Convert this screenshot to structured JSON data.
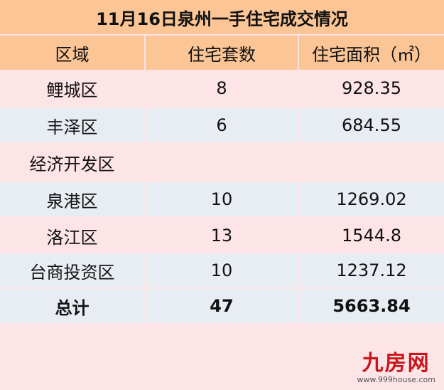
{
  "title": "11月16日泉州一手住宅成交情况",
  "headers": [
    "区域",
    "住宅套数",
    "住宅面积（㎡）"
  ],
  "rows": [
    {
      "district": "鲤城区",
      "units": "8",
      "area": "928.35"
    },
    {
      "district": "丰泽区",
      "units": "6",
      "area": "684.55"
    },
    {
      "district": "经济开发区",
      "units": "",
      "area": ""
    },
    {
      "district": "泉港区",
      "units": "10",
      "area": "1269.02"
    },
    {
      "district": "洛江区",
      "units": "13",
      "area": "1544.8"
    },
    {
      "district": "台商投资区",
      "units": "10",
      "area": "1237.12"
    }
  ],
  "total": {
    "label": "总计",
    "units": "47",
    "area": "5663.84"
  },
  "watermark": {
    "logo": "九房网",
    "url": "www.999house.com"
  },
  "colors": {
    "header": "#fbc596",
    "row_pink": "#fde4e6",
    "row_blue": "#e8ecf3",
    "logo": "#c8161d"
  }
}
